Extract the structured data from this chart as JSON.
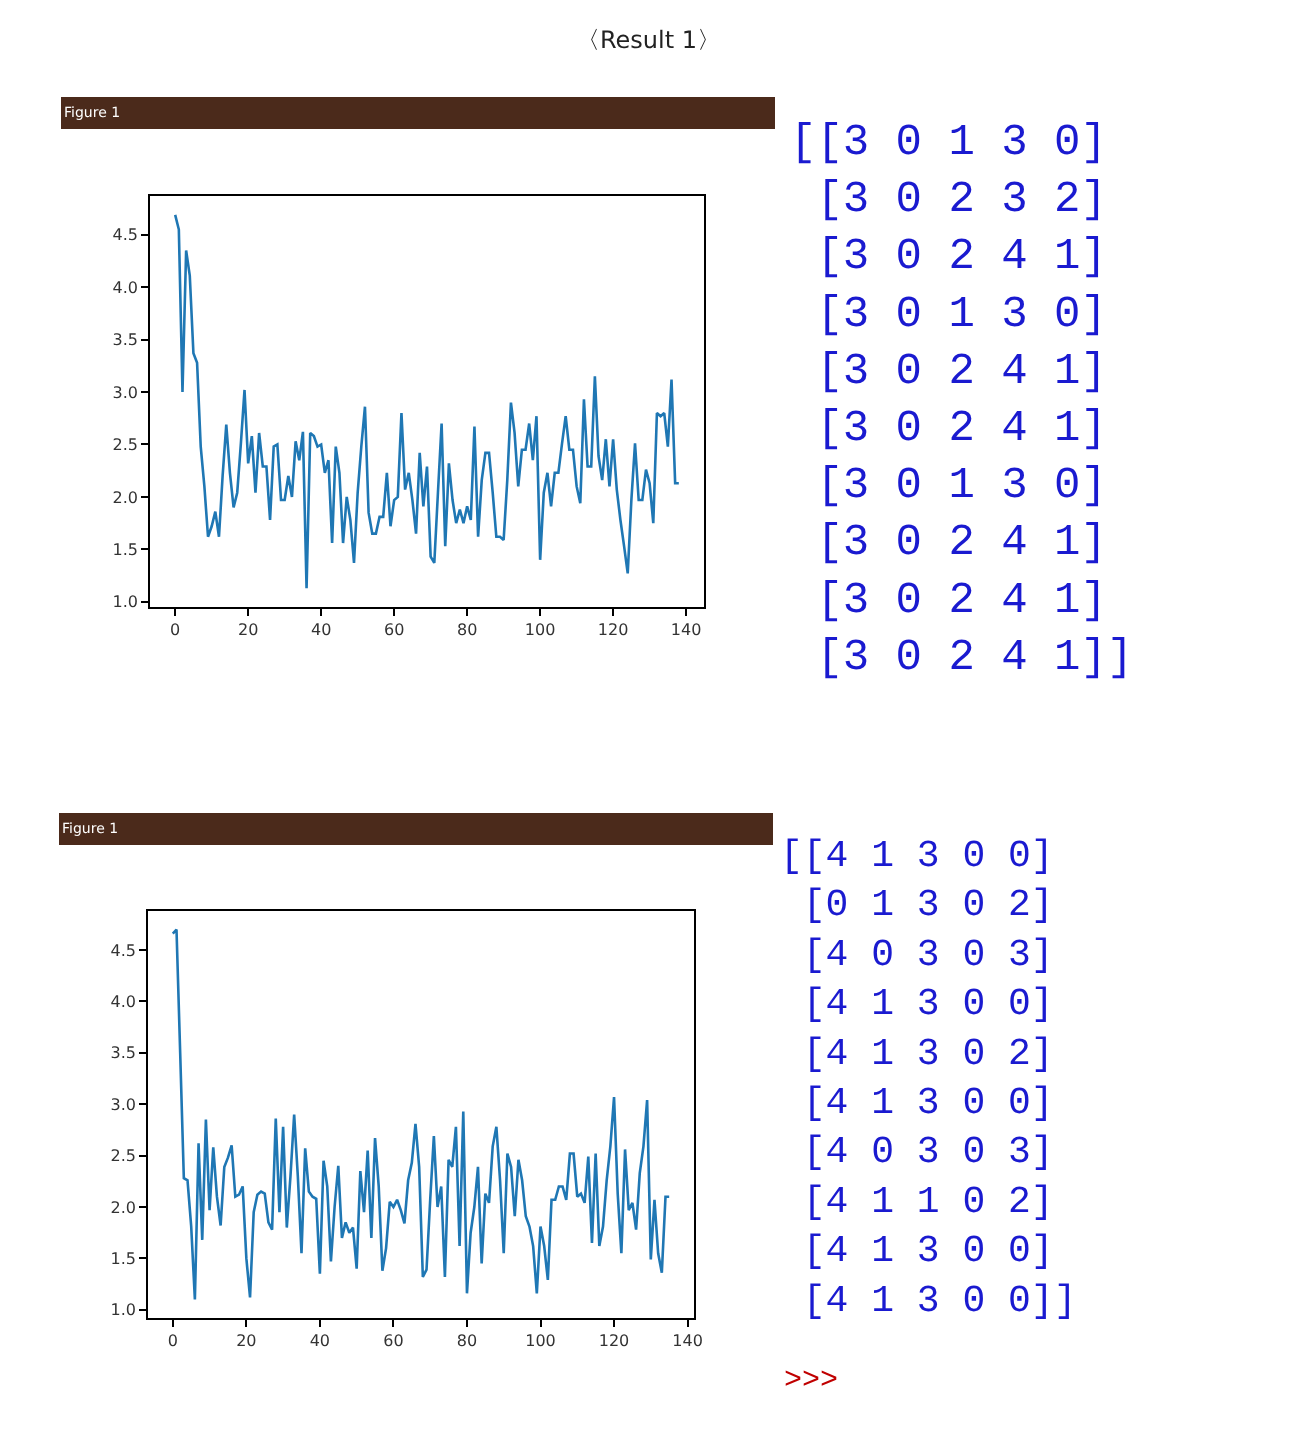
{
  "chart_data": [
    {
      "type": "line",
      "title": "〈Result 1〉",
      "annotations": [
        "Figure 1",
        "[[3 0 1 3 0]\n [3 0 2 3 2]\n [3 0 2 4 1]\n [3 0 1 3 0]\n [3 0 2 4 1]\n [3 0 2 4 1]\n [3 0 1 3 0]\n [3 0 2 4 1]\n [3 0 2 4 1]\n [3 0 2 4 1]]"
      ],
      "x": [
        0,
        1,
        2,
        3,
        4,
        5,
        6,
        7,
        8,
        9,
        10,
        11,
        12,
        13,
        14,
        15,
        16,
        17,
        18,
        19,
        20,
        21,
        22,
        23,
        24,
        25,
        26,
        27,
        28,
        29,
        30,
        31,
        32,
        33,
        34,
        35,
        36,
        37,
        38,
        39,
        40,
        41,
        42,
        43,
        44,
        45,
        46,
        47,
        48,
        49,
        50,
        51,
        52,
        53,
        54,
        55,
        56,
        57,
        58,
        59,
        60,
        61,
        62,
        63,
        64,
        65,
        66,
        67,
        68,
        69,
        70,
        71,
        72,
        73,
        74,
        75,
        76,
        77,
        78,
        79,
        80,
        81,
        82,
        83,
        84,
        85,
        86,
        87,
        88,
        89,
        90,
        91,
        92,
        93,
        94,
        95,
        96,
        97,
        98,
        99,
        100,
        101,
        102,
        103,
        104,
        105,
        106,
        107,
        108,
        109,
        110,
        111,
        112,
        113,
        114,
        115,
        116,
        117,
        118,
        119,
        120,
        121,
        122,
        123,
        124,
        125,
        126,
        127,
        128,
        129,
        130,
        131,
        132,
        133,
        134,
        135,
        136,
        137,
        138
      ],
      "series": [
        {
          "color": "#1f77b4",
          "values": [
            4.69,
            4.55,
            3.0,
            4.35,
            4.11,
            3.37,
            3.28,
            2.48,
            2.1,
            1.62,
            1.72,
            1.86,
            1.62,
            2.2,
            2.69,
            2.23,
            1.9,
            2.04,
            2.51,
            3.02,
            2.32,
            2.58,
            2.04,
            2.61,
            2.29,
            2.29,
            1.78,
            2.48,
            2.5,
            1.97,
            1.97,
            2.2,
            2.0,
            2.53,
            2.35,
            2.62,
            1.13,
            2.61,
            2.58,
            2.48,
            2.5,
            2.23,
            2.35,
            1.56,
            2.48,
            2.23,
            1.56,
            2.0,
            1.78,
            1.37,
            2.04,
            2.48,
            2.86,
            1.85,
            1.65,
            1.65,
            1.81,
            1.81,
            2.23,
            1.72,
            1.97,
            2.0,
            2.8,
            2.07,
            2.23,
            1.97,
            1.65,
            2.42,
            1.91,
            2.29,
            1.43,
            1.37,
            2.04,
            2.7,
            1.53,
            2.32,
            1.97,
            1.75,
            1.88,
            1.75,
            1.91,
            1.78,
            2.67,
            1.62,
            2.16,
            2.42,
            2.42,
            2.04,
            1.62,
            1.62,
            1.59,
            2.16,
            2.9,
            2.61,
            2.1,
            2.45,
            2.45,
            2.7,
            2.35,
            2.77,
            1.4,
            2.04,
            2.23,
            1.91,
            2.23,
            2.23,
            2.51,
            2.77,
            2.45,
            2.45,
            2.1,
            1.94,
            2.93,
            2.29,
            2.29,
            3.15,
            2.39,
            2.16,
            2.55,
            2.1,
            2.55,
            2.07,
            1.78,
            1.53,
            1.27,
            1.97,
            2.51,
            1.97,
            1.97,
            2.26,
            2.13,
            1.75,
            2.8,
            2.77,
            2.8,
            2.48,
            3.12,
            2.13,
            2.13
          ]
        }
      ],
      "xlim": [
        -6.9,
        144.9
      ],
      "xticks": [
        0,
        20,
        40,
        60,
        80,
        100,
        120,
        140
      ],
      "ylim": [
        0.95,
        4.87
      ],
      "yticks": [
        {
          "value": 1,
          "label": "1.0"
        },
        1.5,
        {
          "value": 2,
          "label": "2.0"
        },
        2.5,
        {
          "value": 3,
          "label": "3.0"
        },
        3.5,
        {
          "value": 4,
          "label": "4.0"
        },
        4.5
      ]
    },
    {
      "type": "line",
      "annotations": [
        "Figure 1",
        "[[4 1 3 0 0]\n [0 1 3 0 2]\n [4 0 3 0 3]\n [4 1 3 0 0]\n [4 1 3 0 2]\n [4 1 3 0 0]\n [4 0 3 0 3]\n [4 1 1 0 2]\n [4 1 3 0 0]\n [4 1 3 0 0]]",
        ">>>"
      ],
      "x": [
        0,
        1,
        2,
        3,
        4,
        5,
        6,
        7,
        8,
        9,
        10,
        11,
        12,
        13,
        14,
        15,
        16,
        17,
        18,
        19,
        20,
        21,
        22,
        23,
        24,
        25,
        26,
        27,
        28,
        29,
        30,
        31,
        32,
        33,
        34,
        35,
        36,
        37,
        38,
        39,
        40,
        41,
        42,
        43,
        44,
        45,
        46,
        47,
        48,
        49,
        50,
        51,
        52,
        53,
        54,
        55,
        56,
        57,
        58,
        59,
        60,
        61,
        62,
        63,
        64,
        65,
        66,
        67,
        68,
        69,
        70,
        71,
        72,
        73,
        74,
        75,
        76,
        77,
        78,
        79,
        80,
        81,
        82,
        83,
        84,
        85,
        86,
        87,
        88,
        89,
        90,
        91,
        92,
        93,
        94,
        95,
        96,
        97,
        98,
        99,
        100,
        101,
        102,
        103,
        104,
        105,
        106,
        107,
        108,
        109,
        110,
        111,
        112,
        113,
        114,
        115,
        116,
        117,
        118,
        119,
        120,
        121,
        122,
        123,
        124,
        125,
        126,
        127,
        128,
        129,
        130,
        131,
        132,
        133,
        134,
        135
      ],
      "series": [
        {
          "color": "#1f77b4",
          "values": [
            4.66,
            4.7,
            3.5,
            2.28,
            2.26,
            1.81,
            1.1,
            2.62,
            1.68,
            2.85,
            1.97,
            2.58,
            2.1,
            1.82,
            2.39,
            2.48,
            2.6,
            2.1,
            2.12,
            2.2,
            1.5,
            1.12,
            1.95,
            2.12,
            2.15,
            2.13,
            1.85,
            1.78,
            2.86,
            1.95,
            2.78,
            1.8,
            2.3,
            2.9,
            2.3,
            1.55,
            2.57,
            2.15,
            2.1,
            2.08,
            1.35,
            2.45,
            2.2,
            1.47,
            2.0,
            2.4,
            1.7,
            1.85,
            1.75,
            1.8,
            1.4,
            2.35,
            1.95,
            2.55,
            1.7,
            2.67,
            2.2,
            1.38,
            1.6,
            2.05,
            2.0,
            2.07,
            1.97,
            1.84,
            2.26,
            2.43,
            2.81,
            2.39,
            1.32,
            1.39,
            2.07,
            2.69,
            2.0,
            2.2,
            1.32,
            2.46,
            2.39,
            2.78,
            1.62,
            2.93,
            1.16,
            1.75,
            2.0,
            2.39,
            1.45,
            2.13,
            2.04,
            2.59,
            2.78,
            2.26,
            1.55,
            2.52,
            2.39,
            1.91,
            2.46,
            2.26,
            1.91,
            1.81,
            1.62,
            1.16,
            1.81,
            1.62,
            1.29,
            2.07,
            2.07,
            2.2,
            2.2,
            2.07,
            2.52,
            2.52,
            2.1,
            2.13,
            2.04,
            2.49,
            1.65,
            2.52,
            1.62,
            1.81,
            2.26,
            2.59,
            3.07,
            2.13,
            1.55,
            2.56,
            1.97,
            2.04,
            1.78,
            2.33,
            2.59,
            3.04,
            1.49,
            2.07,
            1.55,
            1.36,
            2.1,
            2.1
          ]
        }
      ],
      "xlim": [
        -6.75,
        141.75
      ],
      "xticks": [
        0,
        20,
        40,
        60,
        80,
        100,
        120,
        140
      ],
      "ylim": [
        0.92,
        4.88
      ],
      "yticks": [
        {
          "value": 1,
          "label": "1.0"
        },
        1.5,
        {
          "value": 2,
          "label": "2.0"
        },
        2.5,
        {
          "value": 3,
          "label": "3.0"
        },
        3.5,
        {
          "value": 4,
          "label": "4.0"
        },
        4.5
      ]
    }
  ]
}
